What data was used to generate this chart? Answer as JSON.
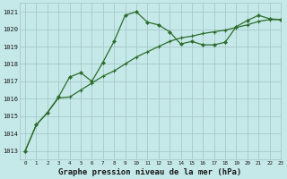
{
  "title": "Graphe pression niveau de la mer (hPa)",
  "background_color": "#c5e8e8",
  "grid_color": "#a8c8c8",
  "line_color": "#2d6e2d",
  "xlim": [
    -0.5,
    23
  ],
  "ylim": [
    1012.5,
    1021.5
  ],
  "yticks": [
    1013,
    1014,
    1015,
    1016,
    1017,
    1018,
    1019,
    1020,
    1021
  ],
  "xticks": [
    0,
    1,
    2,
    3,
    4,
    5,
    6,
    7,
    8,
    9,
    10,
    11,
    12,
    13,
    14,
    15,
    16,
    17,
    18,
    19,
    20,
    21,
    22,
    23
  ],
  "series1_x": [
    0,
    1,
    2,
    3,
    4,
    5,
    6,
    7,
    8,
    9,
    10,
    11,
    12,
    13,
    14,
    15,
    16,
    17,
    18,
    19,
    20,
    21,
    22,
    23
  ],
  "series1_y": [
    1013.0,
    1014.5,
    1015.2,
    1016.1,
    1017.25,
    1017.5,
    1017.0,
    1018.1,
    1019.3,
    1020.8,
    1021.0,
    1020.4,
    1020.25,
    1019.85,
    1019.15,
    1019.3,
    1019.1,
    1019.1,
    1019.25,
    1020.15,
    1020.5,
    1020.8,
    1020.6,
    1020.55
  ],
  "series2_x": [
    0,
    1,
    2,
    3,
    4,
    5,
    6,
    7,
    8,
    9,
    10,
    11,
    12,
    13,
    14,
    15,
    16,
    17,
    18,
    19,
    20,
    21,
    22,
    23
  ],
  "series2_y": [
    1013.0,
    1014.5,
    1015.2,
    1016.05,
    1016.1,
    1016.5,
    1016.9,
    1017.3,
    1017.6,
    1018.0,
    1018.4,
    1018.7,
    1019.0,
    1019.3,
    1019.5,
    1019.6,
    1019.75,
    1019.85,
    1019.95,
    1020.1,
    1020.25,
    1020.45,
    1020.55,
    1020.55
  ],
  "ylabel_fontsize": 5.5,
  "xlabel_fontsize": 5.5,
  "title_fontsize": 6.5
}
